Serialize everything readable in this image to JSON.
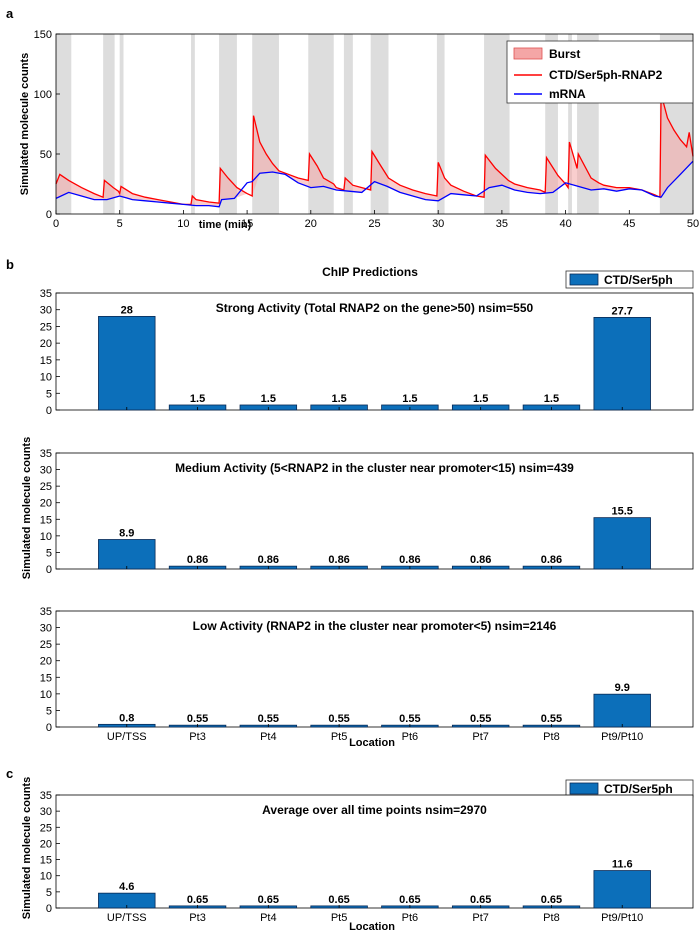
{
  "colors": {
    "burst_fill": "#f4a6a6",
    "burst_edge": "#e05050",
    "burst_band": "#dddddd",
    "ser5_line": "#ff0000",
    "mrna_line": "#0000ff",
    "bar_fill": "#0c6fba",
    "bar_edge": "#0a2a55"
  },
  "panel_letters": {
    "a": "a",
    "b": "b",
    "c": "c"
  },
  "panel_a": {
    "ylabel": "Simulated molecule counts",
    "xlabel": "time (min)",
    "legend": {
      "burst": "Burst",
      "ser5": "CTD/Ser5ph-RNAP2",
      "mrna": "mRNA"
    }
  },
  "panel_b": {
    "title": "ChIP Predictions",
    "ylabel": "Simulated molecule counts",
    "xlabel": "Location",
    "legend_label": "CTD/Ser5ph"
  },
  "panel_c": {
    "ylabel": "Simulated molecule counts",
    "xlabel": "Location",
    "legend_label": "CTD/Ser5ph"
  },
  "chart_data": [
    {
      "type": "line",
      "panel": "a",
      "xlabel": "time (min)",
      "ylabel": "Simulated molecule counts",
      "xlim": [
        0,
        50
      ],
      "ylim": [
        0,
        150
      ],
      "xticks": [
        0,
        5,
        10,
        15,
        20,
        25,
        30,
        35,
        40,
        45,
        50
      ],
      "yticks": [
        0,
        50,
        100,
        150
      ],
      "legend_position": "top-right",
      "burst_intervals": [
        [
          0,
          1.2
        ],
        [
          3.7,
          4.6
        ],
        [
          5.0,
          5.3
        ],
        [
          10.6,
          10.9
        ],
        [
          12.8,
          14.2
        ],
        [
          15.4,
          17.5
        ],
        [
          19.8,
          21.8
        ],
        [
          22.6,
          23.3
        ],
        [
          24.7,
          26.1
        ],
        [
          29.9,
          30.5
        ],
        [
          33.6,
          35.6
        ],
        [
          38.4,
          39.4
        ],
        [
          40.2,
          40.5
        ],
        [
          40.9,
          42.6
        ],
        [
          47.4,
          50
        ]
      ],
      "series": [
        {
          "name": "CTD/Ser5ph-RNAP2",
          "x": [
            0,
            0.3,
            1,
            2,
            3,
            3.7,
            3.8,
            4.5,
            4.9,
            5,
            5.1,
            6,
            7,
            8,
            9,
            10,
            10.6,
            10.7,
            11,
            12,
            12.8,
            12.9,
            13.5,
            14.2,
            15,
            15.4,
            15.5,
            16,
            16.5,
            17,
            17.5,
            18,
            19,
            19.8,
            19.9,
            20.5,
            21,
            21.8,
            22,
            22.6,
            22.7,
            23.3,
            24,
            24.7,
            24.8,
            25.5,
            26.1,
            27,
            28,
            29,
            29.9,
            30,
            30.5,
            31,
            32,
            33,
            33.6,
            33.7,
            34.5,
            35.5,
            36,
            37,
            38,
            38.4,
            38.5,
            39.4,
            40,
            40.2,
            40.3,
            40.9,
            41,
            42,
            42.6,
            43,
            44,
            45,
            46,
            47,
            47.4,
            47.5,
            48,
            48.5,
            49,
            49.5,
            49.7,
            50
          ],
          "y": [
            25,
            33,
            28,
            22,
            17,
            14,
            28,
            22,
            19,
            17,
            23,
            17,
            14,
            12,
            10,
            8,
            8,
            15,
            12,
            10,
            9,
            38,
            30,
            22,
            17,
            15,
            82,
            60,
            50,
            42,
            36,
            34,
            30,
            28,
            50,
            40,
            30,
            25,
            22,
            20,
            30,
            24,
            22,
            20,
            52,
            40,
            30,
            24,
            20,
            17,
            15,
            43,
            30,
            24,
            19,
            15,
            14,
            49,
            38,
            28,
            25,
            22,
            20,
            18,
            47,
            32,
            25,
            22,
            60,
            38,
            50,
            30,
            26,
            24,
            22,
            22,
            20,
            16,
            14,
            100,
            80,
            70,
            62,
            56,
            68,
            48
          ]
        },
        {
          "name": "mRNA",
          "x": [
            0,
            1,
            2,
            3,
            4,
            5,
            6,
            7,
            8,
            9,
            10,
            11,
            12,
            12.8,
            13,
            14,
            15,
            15.4,
            16,
            17,
            18,
            19,
            20,
            21,
            22,
            23,
            24,
            25,
            26,
            27,
            28,
            29,
            30,
            31,
            32,
            33,
            34,
            35,
            36,
            37,
            38,
            39,
            40,
            41,
            42,
            43,
            44,
            45,
            46,
            47,
            47.5,
            48,
            49,
            50
          ],
          "y": [
            13,
            18,
            15,
            12,
            12,
            15,
            12,
            11,
            10,
            9,
            8,
            7,
            7,
            6,
            12,
            13,
            26,
            27,
            34,
            35,
            33,
            26,
            22,
            23,
            20,
            19,
            18,
            27,
            23,
            18,
            15,
            12,
            11,
            17,
            16,
            15,
            22,
            24,
            20,
            18,
            17,
            18,
            26,
            23,
            20,
            21,
            19,
            21,
            20,
            15,
            14,
            22,
            33,
            44
          ]
        }
      ]
    },
    {
      "type": "bar",
      "panel": "b",
      "title": "Strong Activity (Total RNAP2 on the gene>50) nsim=550",
      "categories": [
        "UP/TSS",
        "Pt3",
        "Pt4",
        "Pt5",
        "Pt6",
        "Pt7",
        "Pt8",
        "Pt9/Pt10"
      ],
      "series": [
        {
          "name": "CTD/Ser5ph",
          "values": [
            28,
            1.5,
            1.5,
            1.5,
            1.5,
            1.5,
            1.5,
            27.7
          ]
        }
      ],
      "labels": [
        "28",
        "1.5",
        "1.5",
        "1.5",
        "1.5",
        "1.5",
        "1.5",
        "27.7"
      ],
      "ylim": [
        0,
        35
      ],
      "yticks": [
        0,
        5,
        10,
        15,
        20,
        25,
        30,
        35
      ]
    },
    {
      "type": "bar",
      "panel": "b",
      "title": "Medium Activity (5<RNAP2 in the cluster near promoter<15) nsim=439",
      "categories": [
        "UP/TSS",
        "Pt3",
        "Pt4",
        "Pt5",
        "Pt6",
        "Pt7",
        "Pt8",
        "Pt9/Pt10"
      ],
      "series": [
        {
          "name": "CTD/Ser5ph",
          "values": [
            8.9,
            0.86,
            0.86,
            0.86,
            0.86,
            0.86,
            0.86,
            15.5
          ]
        }
      ],
      "labels": [
        "8.9",
        "0.86",
        "0.86",
        "0.86",
        "0.86",
        "0.86",
        "0.86",
        "15.5"
      ],
      "ylim": [
        0,
        35
      ],
      "yticks": [
        0,
        5,
        10,
        15,
        20,
        25,
        30,
        35
      ]
    },
    {
      "type": "bar",
      "panel": "b",
      "title": "Low Activity (RNAP2 in the cluster near promoter<5) nsim=2146",
      "categories": [
        "UP/TSS",
        "Pt3",
        "Pt4",
        "Pt5",
        "Pt6",
        "Pt7",
        "Pt8",
        "Pt9/Pt10"
      ],
      "series": [
        {
          "name": "CTD/Ser5ph",
          "values": [
            0.8,
            0.55,
            0.55,
            0.55,
            0.55,
            0.55,
            0.55,
            9.9
          ]
        }
      ],
      "labels": [
        "0.8",
        "0.55",
        "0.55",
        "0.55",
        "0.55",
        "0.55",
        "0.55",
        "9.9"
      ],
      "xlabel": "Location",
      "ylim": [
        0,
        35
      ],
      "yticks": [
        0,
        5,
        10,
        15,
        20,
        25,
        30,
        35
      ]
    },
    {
      "type": "bar",
      "panel": "c",
      "title": "Average over all time points nsim=2970",
      "categories": [
        "UP/TSS",
        "Pt3",
        "Pt4",
        "Pt5",
        "Pt6",
        "Pt7",
        "Pt8",
        "Pt9/Pt10"
      ],
      "series": [
        {
          "name": "CTD/Ser5ph",
          "values": [
            4.6,
            0.65,
            0.65,
            0.65,
            0.65,
            0.65,
            0.65,
            11.6
          ]
        }
      ],
      "labels": [
        "4.6",
        "0.65",
        "0.65",
        "0.65",
        "0.65",
        "0.65",
        "0.65",
        "11.6"
      ],
      "xlabel": "Location",
      "ylim": [
        0,
        35
      ],
      "yticks": [
        0,
        5,
        10,
        15,
        20,
        25,
        30,
        35
      ]
    }
  ]
}
